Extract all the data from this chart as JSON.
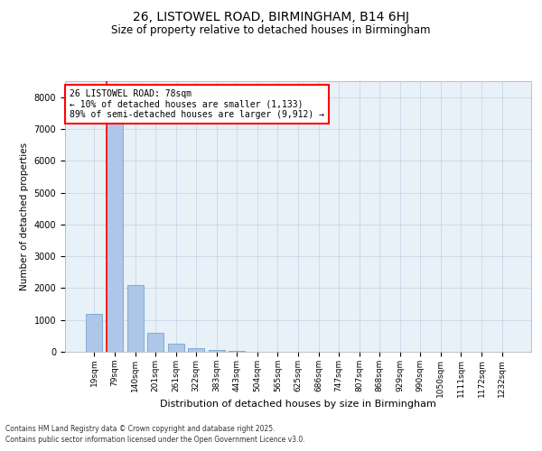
{
  "title_line1": "26, LISTOWEL ROAD, BIRMINGHAM, B14 6HJ",
  "title_line2": "Size of property relative to detached houses in Birmingham",
  "xlabel": "Distribution of detached houses by size in Birmingham",
  "ylabel": "Number of detached properties",
  "categories": [
    "19sqm",
    "79sqm",
    "140sqm",
    "201sqm",
    "261sqm",
    "322sqm",
    "383sqm",
    "443sqm",
    "504sqm",
    "565sqm",
    "625sqm",
    "686sqm",
    "747sqm",
    "807sqm",
    "868sqm",
    "929sqm",
    "990sqm",
    "1050sqm",
    "1111sqm",
    "1172sqm",
    "1232sqm"
  ],
  "values": [
    1200,
    7500,
    2100,
    600,
    250,
    100,
    50,
    20,
    5,
    2,
    1,
    0,
    0,
    0,
    1,
    0,
    0,
    0,
    0,
    0,
    0
  ],
  "bar_color": "#aec6e8",
  "bar_edge_color": "#6699cc",
  "grid_color": "#c8d8ea",
  "background_color": "#e8f0f8",
  "red_line_index": 1,
  "annotation_title": "26 LISTOWEL ROAD: 78sqm",
  "annotation_line1": "← 10% of detached houses are smaller (1,133)",
  "annotation_line2": "89% of semi-detached houses are larger (9,912) →",
  "ylim": [
    0,
    8500
  ],
  "yticks": [
    0,
    1000,
    2000,
    3000,
    4000,
    5000,
    6000,
    7000,
    8000
  ],
  "footnote_line1": "Contains HM Land Registry data © Crown copyright and database right 2025.",
  "footnote_line2": "Contains public sector information licensed under the Open Government Licence v3.0."
}
